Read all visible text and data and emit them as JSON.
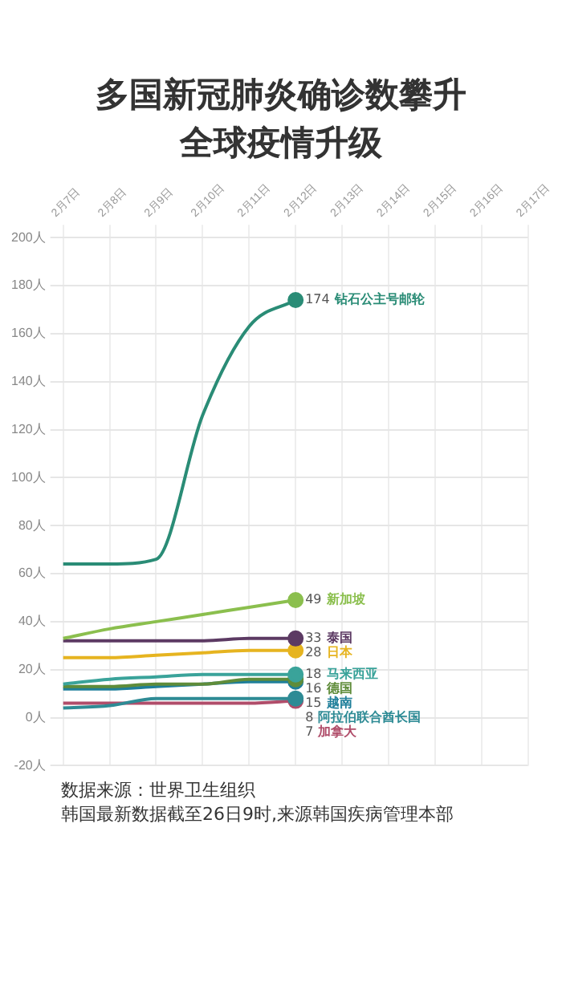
{
  "chart_data": {
    "type": "line",
    "title": "多国新冠肺炎确诊数攀升",
    "subtitle": "全球疫情升级",
    "categories": [
      "2月7日",
      "2月8日",
      "2月9日",
      "2月10日",
      "2月11日",
      "2月12日",
      "2月13日",
      "2月14日",
      "2月15日",
      "2月16日",
      "2月17日"
    ],
    "series": [
      {
        "name": "钻石公主号邮轮",
        "color": "#2a8c76",
        "values": [
          64,
          64,
          66,
          126,
          163,
          174,
          null,
          null,
          null,
          null,
          null
        ],
        "value_labels": [
          null,
          null,
          null,
          null,
          null,
          "174",
          null,
          null,
          null,
          null,
          null
        ]
      },
      {
        "name": "新加坡",
        "color": "#8bbf4e",
        "values": [
          33,
          37,
          40,
          43,
          46,
          49,
          null,
          null,
          null,
          null,
          null
        ],
        "value_labels": [
          null,
          null,
          null,
          null,
          null,
          "49",
          null,
          null,
          null,
          null,
          null
        ]
      },
      {
        "name": "泰国",
        "color": "#5c3a63",
        "values": [
          32,
          32,
          32,
          32,
          33,
          33,
          null,
          null,
          null,
          null,
          null
        ],
        "value_labels": [
          null,
          null,
          null,
          null,
          null,
          "33",
          null,
          null,
          null,
          null,
          null
        ]
      },
      {
        "name": "日本",
        "color": "#e6b420",
        "values": [
          25,
          25,
          26,
          27,
          28,
          28,
          null,
          null,
          null,
          null,
          null
        ],
        "value_labels": [
          null,
          null,
          null,
          null,
          null,
          "28",
          null,
          null,
          null,
          null,
          null
        ]
      },
      {
        "name": "马来西亚",
        "color": "#3aa39a",
        "values": [
          14,
          16,
          17,
          18,
          18,
          18,
          null,
          null,
          null,
          null,
          null
        ],
        "value_labels": [
          null,
          null,
          null,
          null,
          null,
          "18",
          null,
          null,
          null,
          null,
          null
        ]
      },
      {
        "name": "德国",
        "color": "#5f8c3a",
        "values": [
          13,
          13,
          14,
          14,
          16,
          16,
          null,
          null,
          null,
          null,
          null
        ],
        "value_labels": [
          null,
          null,
          null,
          null,
          null,
          "16",
          null,
          null,
          null,
          null,
          null
        ]
      },
      {
        "name": "越南",
        "color": "#1f7f9a",
        "values": [
          12,
          12,
          13,
          14,
          15,
          15,
          null,
          null,
          null,
          null,
          null
        ],
        "value_labels": [
          null,
          null,
          null,
          null,
          null,
          "15",
          null,
          null,
          null,
          null,
          null
        ]
      },
      {
        "name": "阿拉伯联合酋长国",
        "color": "#2e8b95",
        "values": [
          4,
          5,
          8,
          8,
          8,
          8,
          null,
          null,
          null,
          null,
          null
        ],
        "value_labels": [
          null,
          null,
          null,
          null,
          null,
          "8",
          null,
          null,
          null,
          null,
          null
        ]
      },
      {
        "name": "加拿大",
        "color": "#b04d6a",
        "values": [
          6,
          6,
          6,
          6,
          6,
          7,
          null,
          null,
          null,
          null,
          null
        ],
        "value_labels": [
          null,
          null,
          null,
          null,
          null,
          "7",
          null,
          null,
          null,
          null,
          null
        ]
      }
    ],
    "ylim": [
      -20,
      200
    ],
    "yticks": [
      {
        "value": -20,
        "label": "-20人"
      },
      {
        "value": 0,
        "label": "0人"
      },
      {
        "value": 20,
        "label": "20人"
      },
      {
        "value": 40,
        "label": "40人"
      },
      {
        "value": 60,
        "label": "60人"
      },
      {
        "value": 80,
        "label": "80人"
      },
      {
        "value": 100,
        "label": "100人"
      },
      {
        "value": 120,
        "label": "120人"
      },
      {
        "value": 140,
        "label": "140人"
      },
      {
        "value": 160,
        "label": "160人"
      },
      {
        "value": 180,
        "label": "180人"
      },
      {
        "value": 200,
        "label": "200人"
      }
    ],
    "grid": true,
    "legend": false,
    "line_style": "solid",
    "annotations": [
      "数据来源：世界卫生组织",
      "韩国最新数据截至26日9时,来源韩国疾病管理本部"
    ]
  }
}
